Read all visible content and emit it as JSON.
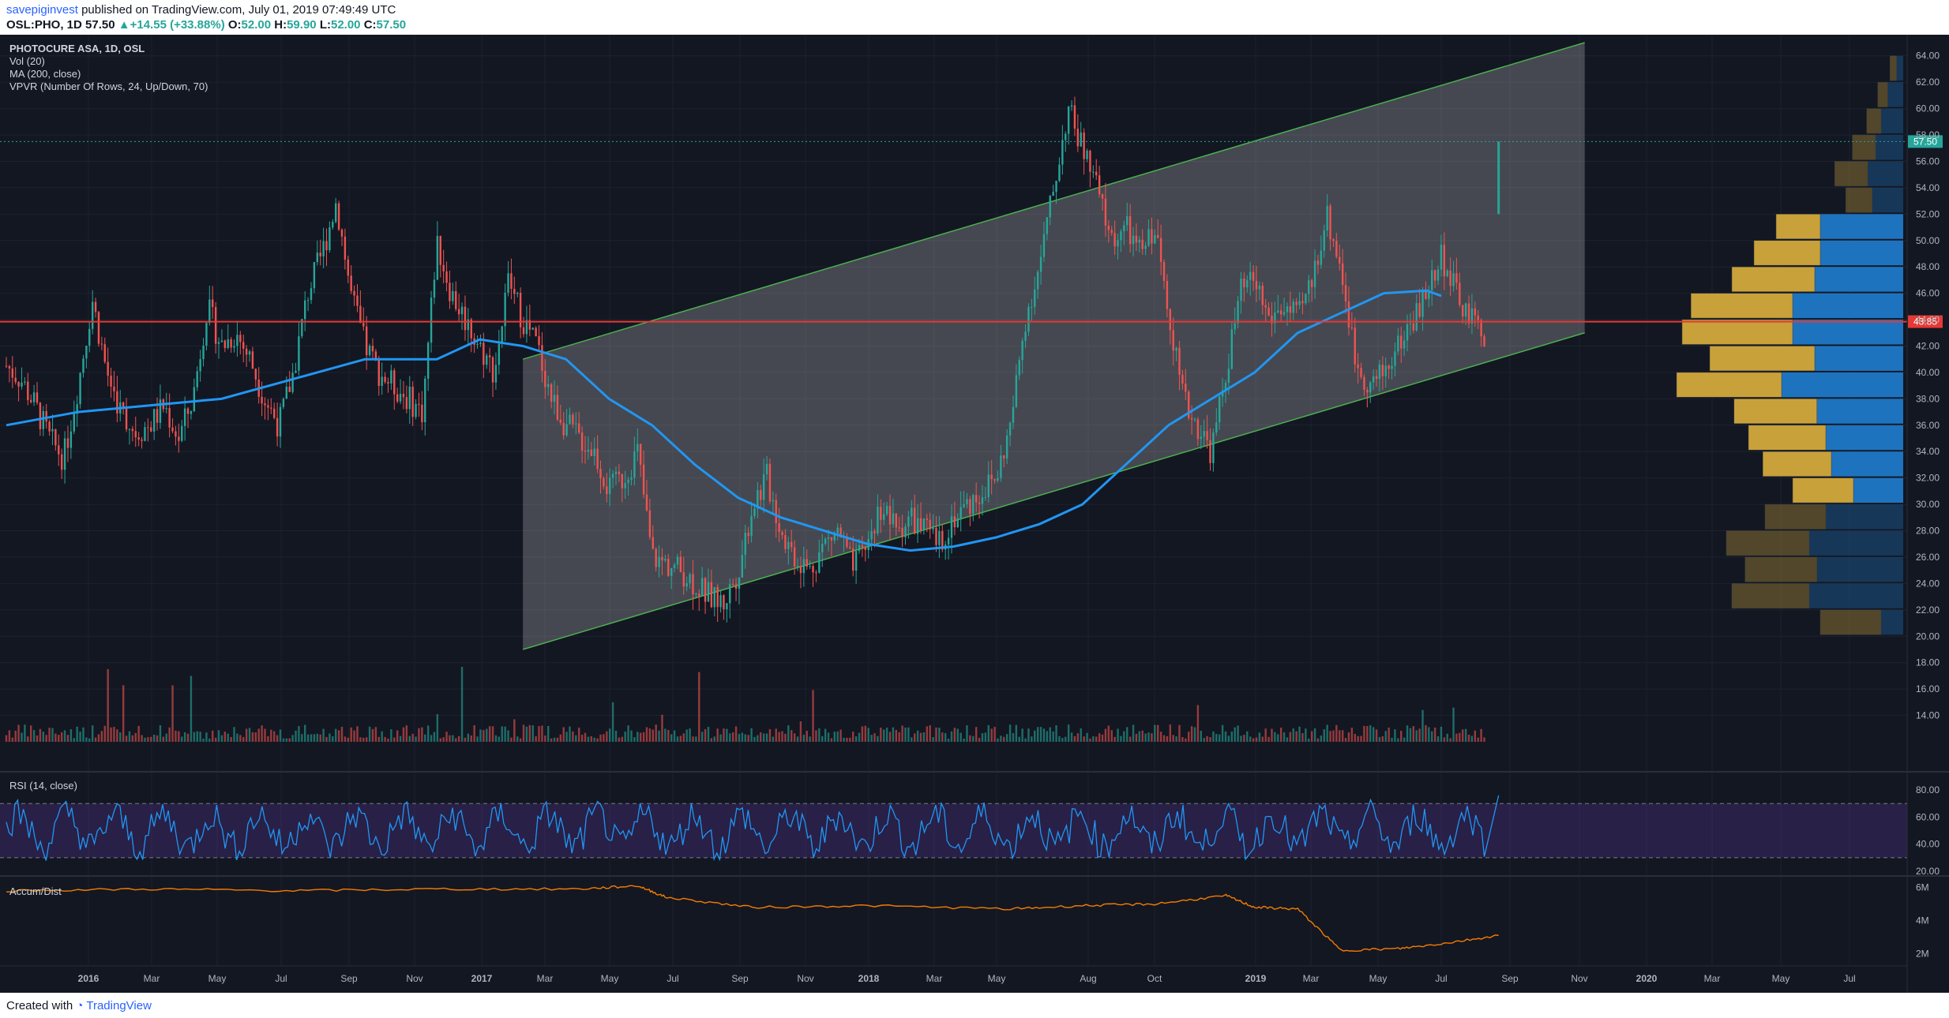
{
  "header": {
    "username": "savepiginvest",
    "published_text": "published on TradingView.com, July 01, 2019 07:49:49 UTC",
    "symbol": "OSL:PHO, 1D",
    "last": "57.50",
    "change": "+14.55 (+33.88%)",
    "open_label": "O:",
    "open": "52.00",
    "high_label": "H:",
    "high": "59.90",
    "low_label": "L:",
    "low": "52.00",
    "close_label": "C:",
    "close": "57.50"
  },
  "legend": {
    "title": "PHOTOCURE ASA, 1D, OSL",
    "vol": "Vol (20)",
    "ma": "MA (200, close)",
    "vpvr": "VPVR (Number Of Rows, 24, Up/Down, 70)",
    "rsi": "RSI (14, close)",
    "accum": "Accum/Dist"
  },
  "footer": {
    "created": "Created with",
    "brand": "TradingView"
  },
  "colors": {
    "background": "#131722",
    "up": "#26a69a",
    "down": "#ef5350",
    "ma": "#2196f3",
    "channel": "#4caf50",
    "hline": "#e53935",
    "rsi_line": "#2196f3",
    "rsi_band": "#673ab7",
    "accum": "#f57c00",
    "vpvr_up": "#1e73be",
    "vpvr_down": "#c8a13a"
  },
  "chart_data": {
    "type": "candlestick",
    "x_ticks": [
      "2016",
      "Mar",
      "May",
      "Jul",
      "Sep",
      "Nov",
      "2017",
      "Mar",
      "May",
      "Jul",
      "Sep",
      "Nov",
      "2018",
      "Mar",
      "May",
      "Aug",
      "Oct",
      "2019",
      "Mar",
      "May",
      "Jul",
      "Sep",
      "Nov",
      "2020",
      "Mar",
      "May",
      "Jul"
    ],
    "y_ticks": [
      "14.00",
      "16.00",
      "18.00",
      "20.00",
      "22.00",
      "24.00",
      "26.00",
      "28.00",
      "30.00",
      "32.00",
      "34.00",
      "36.00",
      "38.00",
      "40.00",
      "42.00",
      "44.00",
      "46.00",
      "48.00",
      "50.00",
      "52.00",
      "54.00",
      "56.00",
      "58.00",
      "60.00",
      "62.00",
      "64.00"
    ],
    "ylim": [
      12,
      65
    ],
    "last_price_label": "57.50",
    "hline_label": "43.85",
    "hline_value": 43.85,
    "price_path": [
      [
        0,
        40.5
      ],
      [
        0.01,
        39.5
      ],
      [
        0.02,
        37.5
      ],
      [
        0.03,
        35
      ],
      [
        0.04,
        33.5
      ],
      [
        0.05,
        39
      ],
      [
        0.06,
        45.5
      ],
      [
        0.07,
        40
      ],
      [
        0.08,
        37
      ],
      [
        0.09,
        35.5
      ],
      [
        0.1,
        36
      ],
      [
        0.11,
        37.5
      ],
      [
        0.12,
        35
      ],
      [
        0.13,
        38
      ],
      [
        0.14,
        45
      ],
      [
        0.15,
        42
      ],
      [
        0.16,
        43
      ],
      [
        0.17,
        41
      ],
      [
        0.18,
        38
      ],
      [
        0.19,
        36
      ],
      [
        0.2,
        40
      ],
      [
        0.21,
        46
      ],
      [
        0.22,
        49
      ],
      [
        0.23,
        53
      ],
      [
        0.24,
        46
      ],
      [
        0.25,
        42
      ],
      [
        0.26,
        40
      ],
      [
        0.27,
        39
      ],
      [
        0.28,
        38
      ],
      [
        0.29,
        37
      ],
      [
        0.3,
        50
      ],
      [
        0.31,
        46
      ],
      [
        0.32,
        44
      ],
      [
        0.33,
        42
      ],
      [
        0.34,
        40
      ],
      [
        0.35,
        47
      ],
      [
        0.36,
        44
      ],
      [
        0.37,
        42
      ],
      [
        0.38,
        38
      ],
      [
        0.39,
        36
      ],
      [
        0.4,
        35
      ],
      [
        0.41,
        34
      ],
      [
        0.42,
        31
      ],
      [
        0.43,
        32
      ],
      [
        0.44,
        34
      ],
      [
        0.45,
        26
      ],
      [
        0.46,
        25.5
      ],
      [
        0.47,
        25
      ],
      [
        0.48,
        24
      ],
      [
        0.49,
        23
      ],
      [
        0.5,
        22.5
      ],
      [
        0.51,
        25
      ],
      [
        0.52,
        30
      ],
      [
        0.53,
        32
      ],
      [
        0.54,
        28
      ],
      [
        0.55,
        26
      ],
      [
        0.56,
        25
      ],
      [
        0.57,
        27
      ],
      [
        0.58,
        28
      ],
      [
        0.59,
        25
      ],
      [
        0.6,
        27
      ],
      [
        0.61,
        30
      ],
      [
        0.62,
        28
      ],
      [
        0.63,
        29
      ],
      [
        0.64,
        28
      ],
      [
        0.65,
        27
      ],
      [
        0.66,
        29
      ],
      [
        0.67,
        30
      ],
      [
        0.68,
        31
      ],
      [
        0.69,
        32
      ],
      [
        0.7,
        36
      ],
      [
        0.71,
        44
      ],
      [
        0.72,
        48
      ],
      [
        0.73,
        54
      ],
      [
        0.74,
        60
      ],
      [
        0.75,
        57
      ],
      [
        0.76,
        54
      ],
      [
        0.77,
        50
      ],
      [
        0.78,
        51
      ],
      [
        0.79,
        49
      ],
      [
        0.8,
        51
      ],
      [
        0.81,
        45
      ],
      [
        0.82,
        38
      ],
      [
        0.83,
        36
      ],
      [
        0.84,
        34
      ],
      [
        0.85,
        40
      ],
      [
        0.86,
        46
      ],
      [
        0.87,
        47
      ],
      [
        0.88,
        44
      ],
      [
        0.89,
        45
      ],
      [
        0.9,
        44
      ],
      [
        0.91,
        47
      ],
      [
        0.92,
        52
      ],
      [
        0.93,
        48
      ],
      [
        0.94,
        41
      ],
      [
        0.95,
        39
      ],
      [
        0.96,
        40
      ],
      [
        0.97,
        42
      ],
      [
        0.98,
        44
      ],
      [
        0.99,
        46
      ],
      [
        1.0,
        49
      ],
      [
        1.01,
        46
      ],
      [
        1.02,
        44
      ],
      [
        1.03,
        43
      ],
      [
        1.04,
        57.5
      ]
    ],
    "ma_path": [
      [
        0,
        36
      ],
      [
        0.05,
        37
      ],
      [
        0.1,
        37.5
      ],
      [
        0.15,
        38
      ],
      [
        0.2,
        39.5
      ],
      [
        0.25,
        41
      ],
      [
        0.3,
        41
      ],
      [
        0.33,
        42.5
      ],
      [
        0.36,
        42
      ],
      [
        0.39,
        41
      ],
      [
        0.42,
        38
      ],
      [
        0.45,
        36
      ],
      [
        0.48,
        33
      ],
      [
        0.51,
        30.5
      ],
      [
        0.54,
        29
      ],
      [
        0.57,
        28
      ],
      [
        0.6,
        27
      ],
      [
        0.63,
        26.5
      ],
      [
        0.66,
        26.8
      ],
      [
        0.69,
        27.5
      ],
      [
        0.72,
        28.5
      ],
      [
        0.75,
        30
      ],
      [
        0.78,
        33
      ],
      [
        0.81,
        36
      ],
      [
        0.84,
        38
      ],
      [
        0.87,
        40
      ],
      [
        0.9,
        43
      ],
      [
        0.93,
        44.5
      ],
      [
        0.96,
        46
      ],
      [
        0.99,
        46.2
      ],
      [
        1.0,
        45.8
      ]
    ],
    "channel": {
      "upper": [
        [
          0.36,
          41
        ],
        [
          1.1,
          65
        ]
      ],
      "lower": [
        [
          0.36,
          19
        ],
        [
          1.1,
          43
        ]
      ],
      "area_x": [
        0.36,
        1.1
      ]
    },
    "vpvr_rows": [
      {
        "price": 63,
        "up": 6,
        "down": 6
      },
      {
        "price": 61,
        "up": 14,
        "down": 9
      },
      {
        "price": 59,
        "up": 20,
        "down": 13
      },
      {
        "price": 57,
        "up": 25,
        "down": 21
      },
      {
        "price": 55,
        "up": 32,
        "down": 30
      },
      {
        "price": 53,
        "up": 28,
        "down": 24
      },
      {
        "price": 51,
        "up": 75,
        "down": 40
      },
      {
        "price": 49,
        "up": 75,
        "down": 60
      },
      {
        "price": 47,
        "up": 80,
        "down": 75
      },
      {
        "price": 45,
        "up": 100,
        "down": 92
      },
      {
        "price": 43,
        "up": 100,
        "down": 100
      },
      {
        "price": 41,
        "up": 80,
        "down": 95
      },
      {
        "price": 39,
        "up": 110,
        "down": 95
      },
      {
        "price": 37,
        "up": 78,
        "down": 75
      },
      {
        "price": 35,
        "up": 70,
        "down": 70
      },
      {
        "price": 33,
        "up": 65,
        "down": 62
      },
      {
        "price": 31,
        "up": 45,
        "down": 55
      },
      {
        "price": 29,
        "up": 70,
        "down": 55
      },
      {
        "price": 27,
        "up": 85,
        "down": 75
      },
      {
        "price": 25,
        "up": 78,
        "down": 65
      },
      {
        "price": 23,
        "up": 85,
        "down": 70
      },
      {
        "price": 21,
        "up": 20,
        "down": 55
      }
    ],
    "rsi_ticks": [
      "80.00",
      "60.00",
      "40.00",
      "20.00"
    ],
    "rsi_band": [
      30,
      70
    ],
    "accum_ticks": [
      "6M",
      "4M",
      "2M"
    ]
  }
}
